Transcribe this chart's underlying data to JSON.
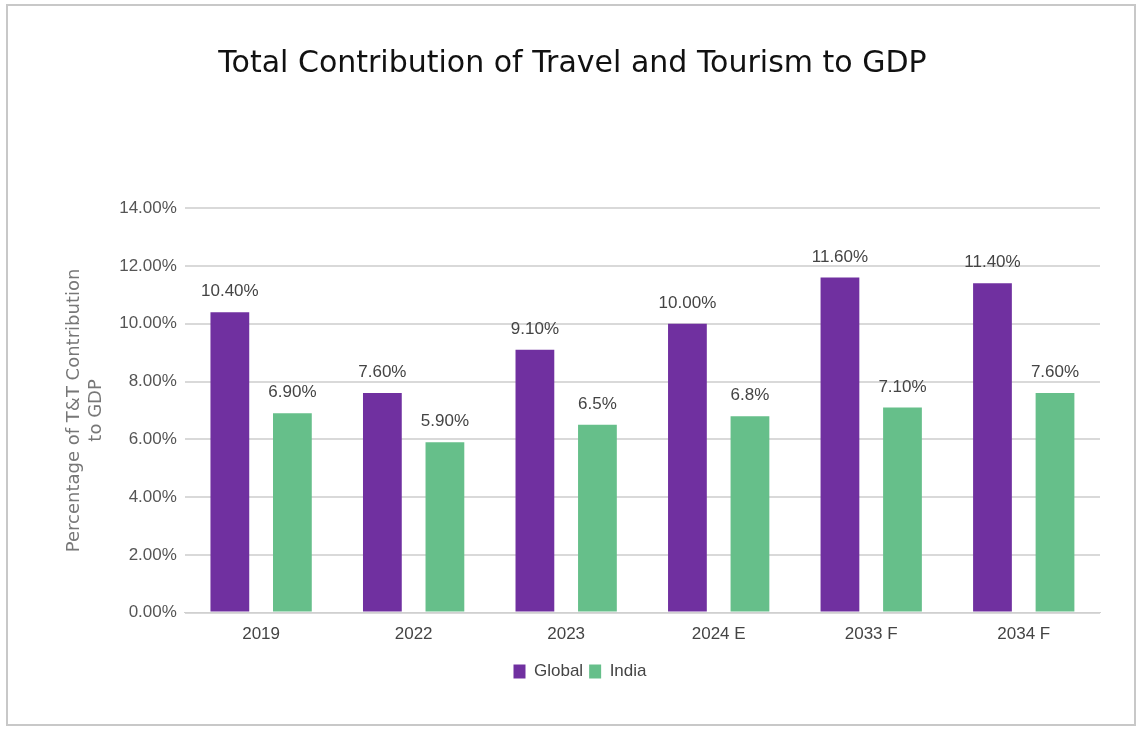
{
  "chart_data": {
    "type": "bar",
    "title": "Total Contribution of Travel and Tourism to GDP",
    "ylabel": "Percentage of T&T Contribution to GDP",
    "categories": [
      "2019",
      "2022",
      "2023",
      "2024 E",
      "2033 F",
      "2034 F"
    ],
    "series": [
      {
        "name": "Global",
        "color": "#7030a0",
        "values": [
          10.4,
          7.6,
          9.1,
          10.0,
          11.6,
          11.4
        ],
        "value_labels": [
          "10.40%",
          "7.60%",
          "9.10%",
          "10.00%",
          "11.60%",
          "11.40%"
        ]
      },
      {
        "name": "India",
        "color": "#66bf8a",
        "values": [
          6.9,
          5.9,
          6.5,
          6.8,
          7.1,
          7.6
        ],
        "value_labels": [
          "6.90%",
          "5.90%",
          "6.5%",
          "6.8%",
          "7.10%",
          "7.60%"
        ]
      }
    ],
    "ylim": [
      0,
      14
    ],
    "yticks": [
      {
        "value": 0,
        "label": "0.00%"
      },
      {
        "value": 2,
        "label": "2.00%"
      },
      {
        "value": 4,
        "label": "4.00%"
      },
      {
        "value": 6,
        "label": "6.00%"
      },
      {
        "value": 8,
        "label": "8.00%"
      },
      {
        "value": 10,
        "label": "10.00%"
      },
      {
        "value": 12,
        "label": "12.00%"
      },
      {
        "value": 14,
        "label": "14.00%"
      }
    ],
    "grid": "y",
    "legend": "bottom"
  }
}
